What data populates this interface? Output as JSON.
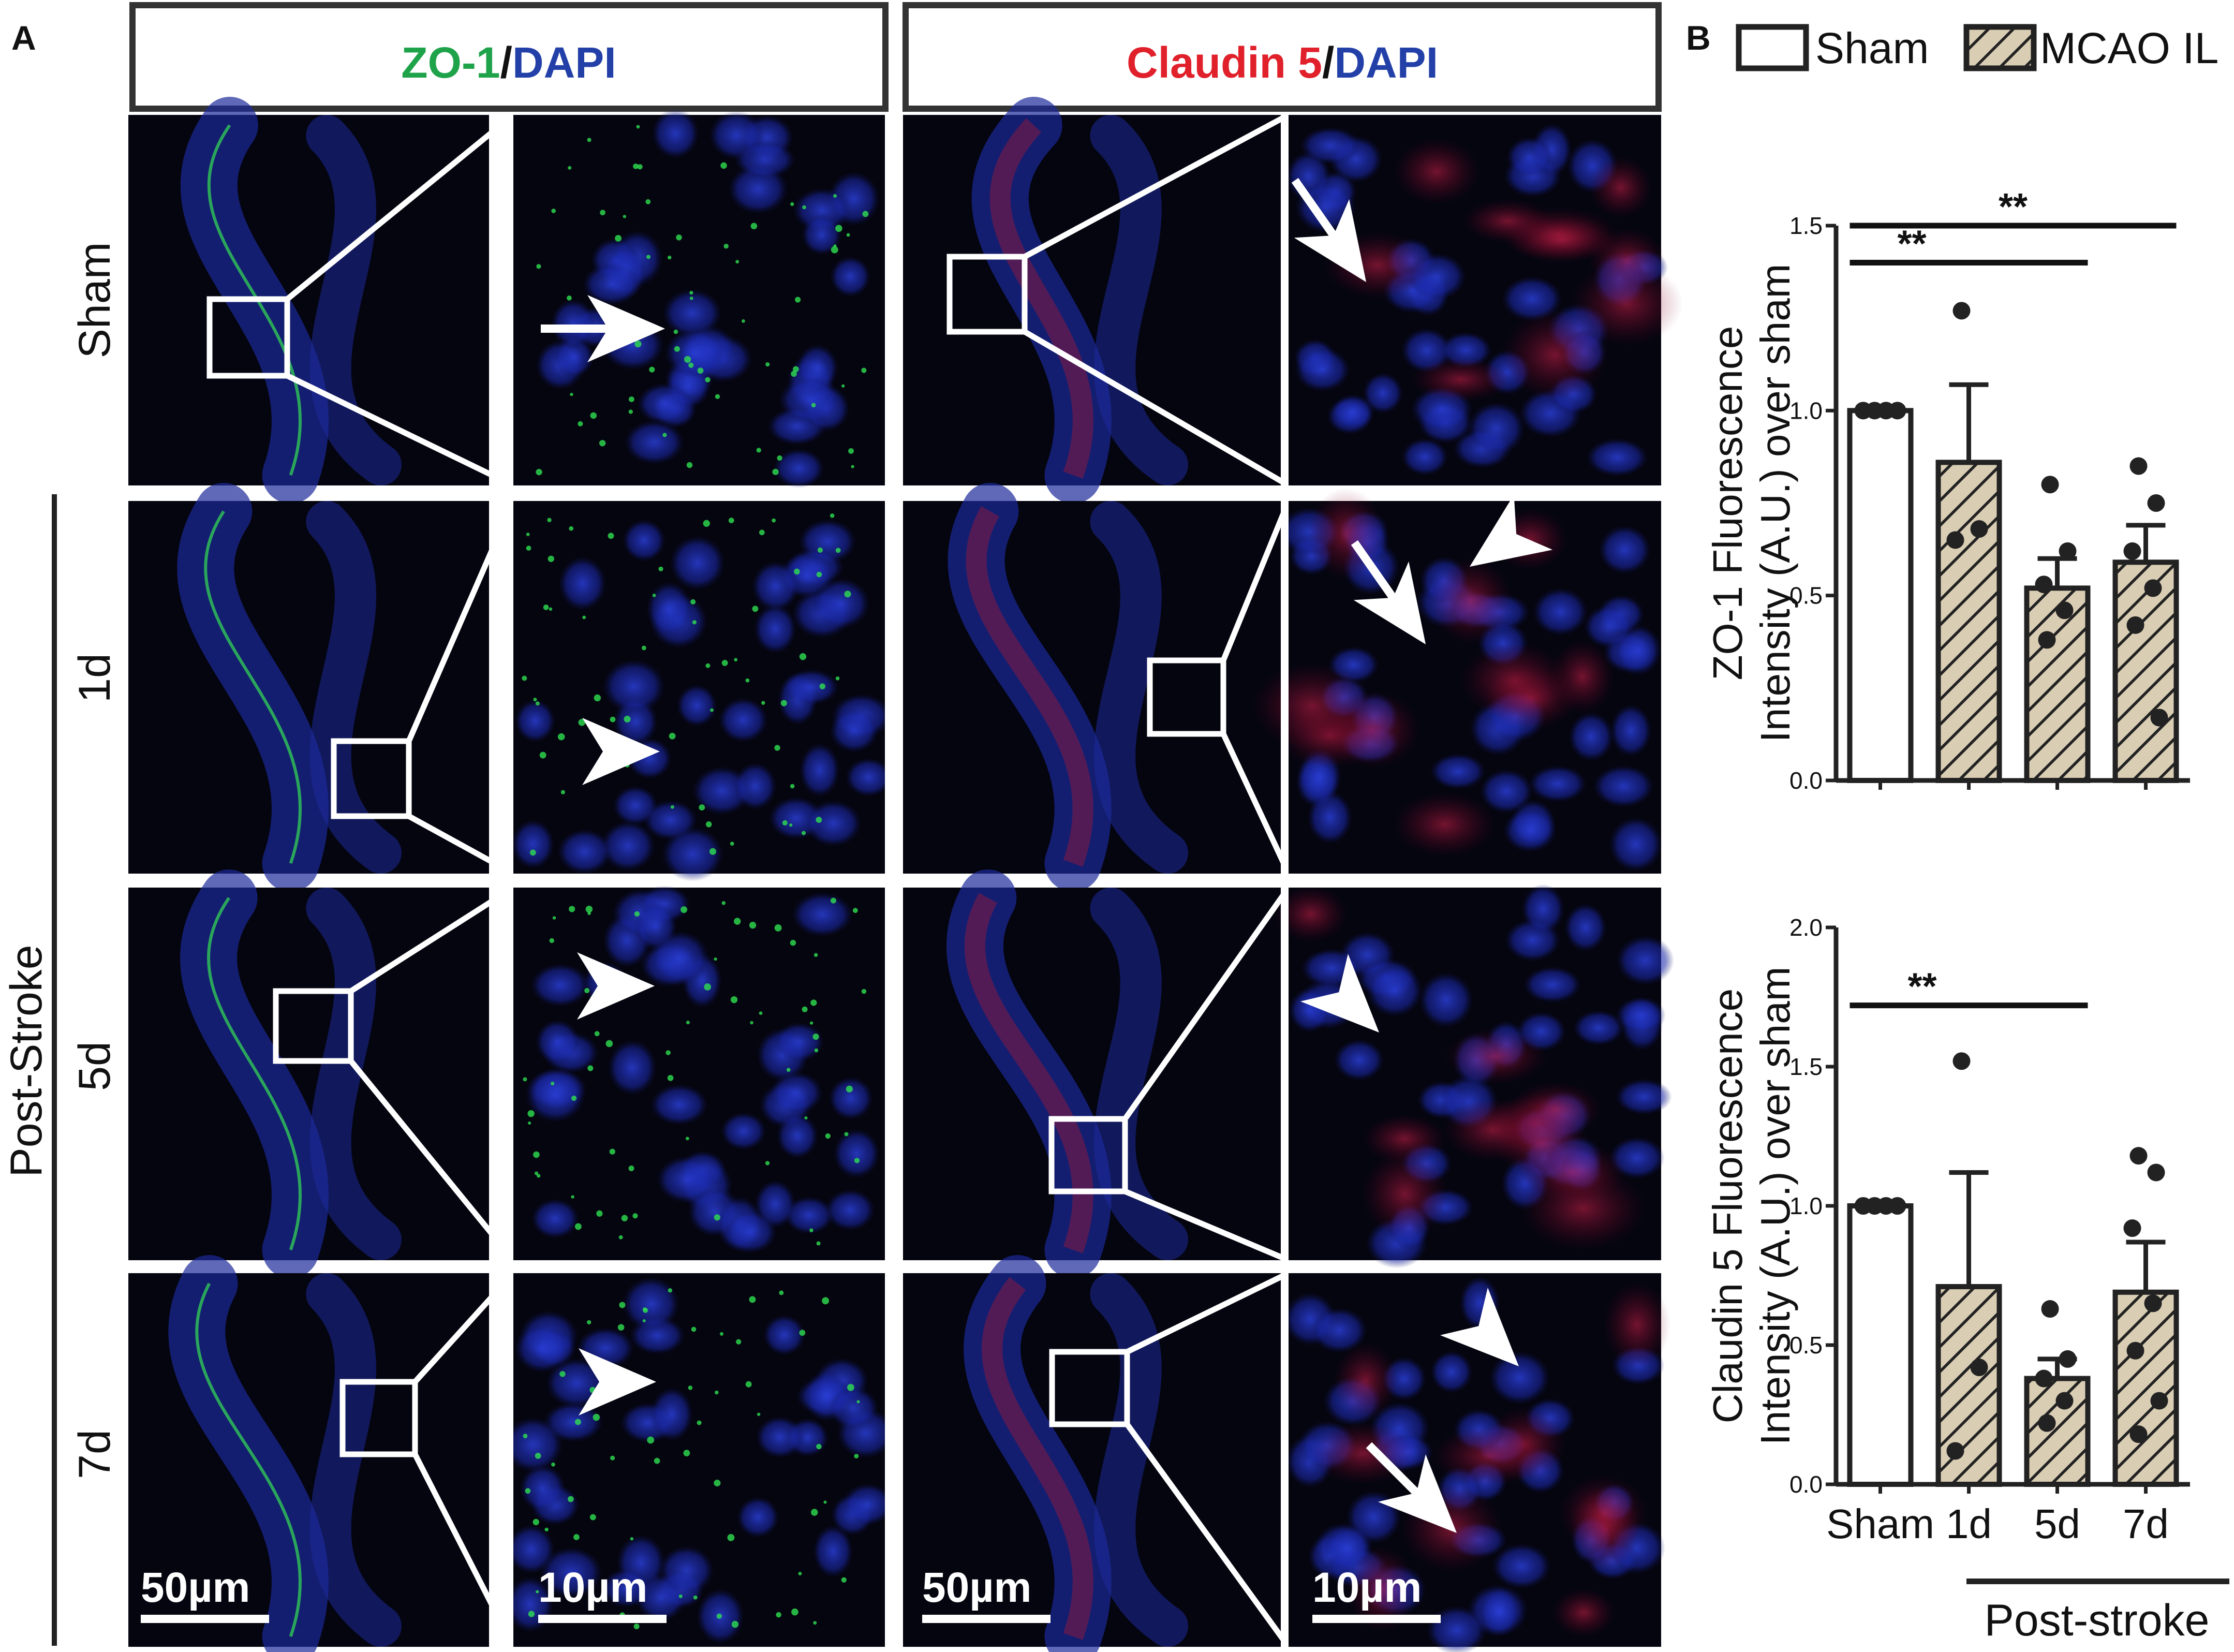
{
  "panel_a": {
    "label": "A",
    "headers": [
      {
        "marker": "ZO-1",
        "sep": "/",
        "stain": "DAPI",
        "marker_color": "#1fa34a",
        "stain_color": "#2340a8"
      },
      {
        "marker": "Claudin 5",
        "sep": "/",
        "stain": "DAPI",
        "marker_color": "#e0202a",
        "stain_color": "#2340a8"
      }
    ],
    "row_labels": [
      "Sham",
      "1d",
      "5d",
      "7d"
    ],
    "group_label": "Post-Stroke",
    "scale_bars": [
      "50µm",
      "10µm",
      "50µm",
      "10µm"
    ]
  },
  "panel_b": {
    "label": "B",
    "legend": [
      {
        "label": "Sham",
        "pattern": "open"
      },
      {
        "label": "MCAO IL",
        "pattern": "hatched"
      }
    ],
    "group_label": "Post-stroke"
  },
  "colors": {
    "bar_hatched_fill": "#d9cdb4",
    "bar_outline": "#222222",
    "dapi_blue": "#1a2fc0",
    "zo1_green": "#22d04a",
    "claudin_red": "#e01828"
  },
  "chart_data": [
    {
      "type": "bar",
      "ylabel": [
        "ZO-1 Fluorescence",
        "Intensity (A.U.) over sham"
      ],
      "categories": [
        "Sham",
        "1d",
        "5d",
        "7d"
      ],
      "show_xticklabels": false,
      "values": [
        1.0,
        0.86,
        0.52,
        0.59
      ],
      "errors": [
        0.0,
        0.21,
        0.08,
        0.1
      ],
      "points": [
        [
          1.0,
          1.0,
          1.0,
          1.0
        ],
        [
          1.27,
          0.68,
          0.65
        ],
        [
          0.8,
          0.62,
          0.53,
          0.46,
          0.38
        ],
        [
          0.85,
          0.75,
          0.62,
          0.52,
          0.42,
          0.17
        ]
      ],
      "patterns": [
        "open",
        "hatched",
        "hatched",
        "hatched"
      ],
      "ylim": [
        0,
        1.5
      ],
      "yticks": [
        0.0,
        0.5,
        1.0,
        1.5
      ],
      "ytick_labels": [
        "0.0",
        "0.5",
        "1.0",
        "1.5"
      ],
      "significance": [
        {
          "from": 0,
          "to": 3,
          "y": 1.5,
          "label": "**"
        },
        {
          "from": 0,
          "to": 2,
          "y": 1.4,
          "label": "**"
        }
      ]
    },
    {
      "type": "bar",
      "ylabel": [
        "Claudin 5 Fluorescence",
        "Intensity (A.U.) over sham"
      ],
      "categories": [
        "Sham",
        "1d",
        "5d",
        "7d"
      ],
      "category_labels": [
        "Sham",
        "1d",
        "5d",
        "7d"
      ],
      "show_xticklabels": true,
      "values": [
        1.0,
        0.71,
        0.38,
        0.69
      ],
      "errors": [
        0.0,
        0.41,
        0.07,
        0.18
      ],
      "points": [
        [
          1.0,
          1.0,
          1.0,
          1.0
        ],
        [
          1.52,
          0.42,
          0.12
        ],
        [
          0.63,
          0.45,
          0.38,
          0.3,
          0.22
        ],
        [
          1.18,
          1.12,
          0.92,
          0.65,
          0.48,
          0.3,
          0.18
        ]
      ],
      "patterns": [
        "open",
        "hatched",
        "hatched",
        "hatched"
      ],
      "ylim": [
        0,
        2.0
      ],
      "yticks": [
        0.0,
        0.5,
        1.0,
        1.5,
        2.0
      ],
      "ytick_labels": [
        "0.0",
        "0.5",
        "1.0",
        "1.5",
        "2.0"
      ],
      "significance": [
        {
          "from": 0,
          "to": 2,
          "y": 1.72,
          "label": "**"
        }
      ]
    }
  ]
}
